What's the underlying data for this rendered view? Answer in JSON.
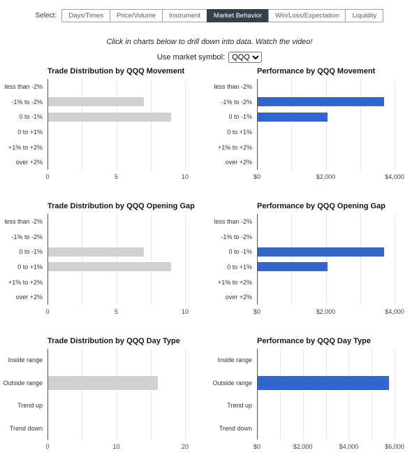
{
  "page": {
    "select_label": "Select:",
    "hint": "Click in charts below to drill down into data. Watch the video!",
    "symbol_label": "Use market symbol:",
    "symbol_value": "QQQ",
    "symbol_dropdown_icon": "chevron-down-icon"
  },
  "tabs": [
    {
      "label": "Days/Times",
      "active": false
    },
    {
      "label": "Price/Volume",
      "active": false
    },
    {
      "label": "Instrument",
      "active": false
    },
    {
      "label": "Market Behavior",
      "active": true
    },
    {
      "label": "Win/Loss/Expectation",
      "active": false
    },
    {
      "label": "Liquidity",
      "active": false
    }
  ],
  "colors": {
    "distribution_bar": "#d1d1d1",
    "performance_bar": "#3366cc",
    "active_tab_bg": "#33414d",
    "active_tab_text": "#ffffff",
    "tab_text": "#51626f",
    "gridline": "#e6e6e6",
    "baseline": "#555555"
  },
  "chart_data": [
    {
      "type": "bar",
      "orientation": "horizontal",
      "title": "Trade Distribution by QQQ Movement",
      "categories": [
        "less than -2%",
        "-1% to -2%",
        "0 to -1%",
        "0 to +1%",
        "+1% to +2%",
        "over +2%"
      ],
      "values": [
        0,
        7,
        9,
        0,
        0,
        0
      ],
      "xlabel": "",
      "ylabel": "",
      "xlim": [
        0,
        10
      ],
      "ticks": [
        {
          "v": 0,
          "label": "0"
        },
        {
          "v": 5,
          "label": "5"
        },
        {
          "v": 10,
          "label": "10"
        }
      ],
      "gridline_step": 2.5,
      "grid": true,
      "legend": "none",
      "bar_color": "#d1d1d1"
    },
    {
      "type": "bar",
      "orientation": "horizontal",
      "title": "Performance by QQQ Movement",
      "categories": [
        "less than -2%",
        "-1% to -2%",
        "0 to -1%",
        "0 to +1%",
        "+1% to +2%",
        "over +2%"
      ],
      "values": [
        0,
        3700,
        2050,
        0,
        0,
        0
      ],
      "xlabel": "",
      "ylabel": "",
      "xlim": [
        0,
        4000
      ],
      "ticks": [
        {
          "v": 0,
          "label": "$0"
        },
        {
          "v": 2000,
          "label": "$2,000"
        },
        {
          "v": 4000,
          "label": "$4,000"
        }
      ],
      "gridline_step": 1000,
      "grid": true,
      "legend": "none",
      "bar_color": "#3366cc"
    },
    {
      "type": "bar",
      "orientation": "horizontal",
      "title": "Trade Distribution by QQQ Opening Gap",
      "categories": [
        "less than -2%",
        "-1% to -2%",
        "0 to -1%",
        "0 to +1%",
        "+1% to +2%",
        "over +2%"
      ],
      "values": [
        0,
        0,
        7,
        9,
        0,
        0
      ],
      "xlabel": "",
      "ylabel": "",
      "xlim": [
        0,
        10
      ],
      "ticks": [
        {
          "v": 0,
          "label": "0"
        },
        {
          "v": 5,
          "label": "5"
        },
        {
          "v": 10,
          "label": "10"
        }
      ],
      "gridline_step": 2.5,
      "grid": true,
      "legend": "none",
      "bar_color": "#d1d1d1"
    },
    {
      "type": "bar",
      "orientation": "horizontal",
      "title": "Performance by QQQ Opening Gap",
      "categories": [
        "less than -2%",
        "-1% to -2%",
        "0 to -1%",
        "0 to +1%",
        "+1% to +2%",
        "over +2%"
      ],
      "values": [
        0,
        0,
        3700,
        2050,
        0,
        0
      ],
      "xlabel": "",
      "ylabel": "",
      "xlim": [
        0,
        4000
      ],
      "ticks": [
        {
          "v": 0,
          "label": "$0"
        },
        {
          "v": 2000,
          "label": "$2,000"
        },
        {
          "v": 4000,
          "label": "$4,000"
        }
      ],
      "gridline_step": 1000,
      "grid": true,
      "legend": "none",
      "bar_color": "#3366cc"
    },
    {
      "type": "bar",
      "orientation": "horizontal",
      "title": "Trade Distribution by QQQ Day Type",
      "categories": [
        "Inside range",
        "Outside range",
        "Trend up",
        "Trend down"
      ],
      "values": [
        0,
        16,
        0,
        0
      ],
      "xlabel": "",
      "ylabel": "",
      "xlim": [
        0,
        20
      ],
      "ticks": [
        {
          "v": 0,
          "label": "0"
        },
        {
          "v": 10,
          "label": "10"
        },
        {
          "v": 20,
          "label": "20"
        }
      ],
      "gridline_step": 5,
      "grid": true,
      "legend": "none",
      "bar_color": "#d1d1d1"
    },
    {
      "type": "bar",
      "orientation": "horizontal",
      "title": "Performance by QQQ Day Type",
      "categories": [
        "Inside range",
        "Outside range",
        "Trend up",
        "Trend down"
      ],
      "values": [
        0,
        5750,
        0,
        0
      ],
      "xlabel": "",
      "ylabel": "",
      "xlim": [
        0,
        6000
      ],
      "ticks": [
        {
          "v": 0,
          "label": "$0"
        },
        {
          "v": 2000,
          "label": "$2,000"
        },
        {
          "v": 4000,
          "label": "$4,000"
        },
        {
          "v": 6000,
          "label": "$6,000"
        }
      ],
      "gridline_step": 1000,
      "grid": true,
      "legend": "none",
      "bar_color": "#3366cc"
    }
  ]
}
